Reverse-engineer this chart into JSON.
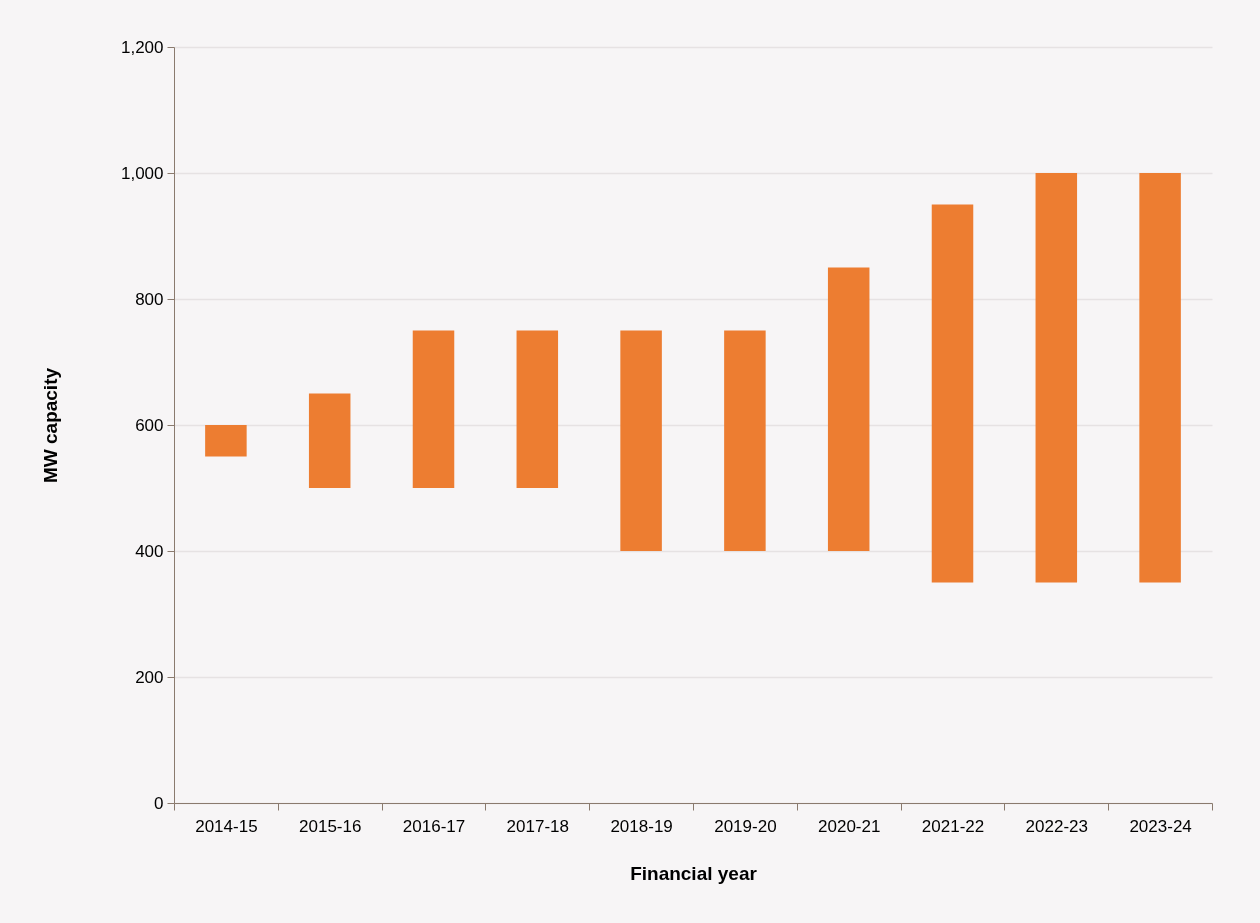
{
  "chart_data": {
    "type": "bar",
    "xlabel": "Financial year",
    "ylabel": "MW capacity",
    "categories": [
      "2014-15",
      "2015-16",
      "2016-17",
      "2017-18",
      "2018-19",
      "2019-20",
      "2020-21",
      "2021-22",
      "2022-23",
      "2023-24"
    ],
    "base": [
      550,
      500,
      500,
      500,
      400,
      400,
      400,
      350,
      350,
      350
    ],
    "values": [
      50,
      150,
      250,
      250,
      350,
      350,
      450,
      600,
      650,
      650
    ],
    "color": "#ed7d31",
    "ylim": [
      0,
      1200
    ],
    "yticks": [
      0,
      200,
      400,
      600,
      800,
      {
        "value": 1000,
        "label": "1,000"
      },
      {
        "value": 1200,
        "label": "1,200"
      }
    ],
    "grid": "y"
  }
}
